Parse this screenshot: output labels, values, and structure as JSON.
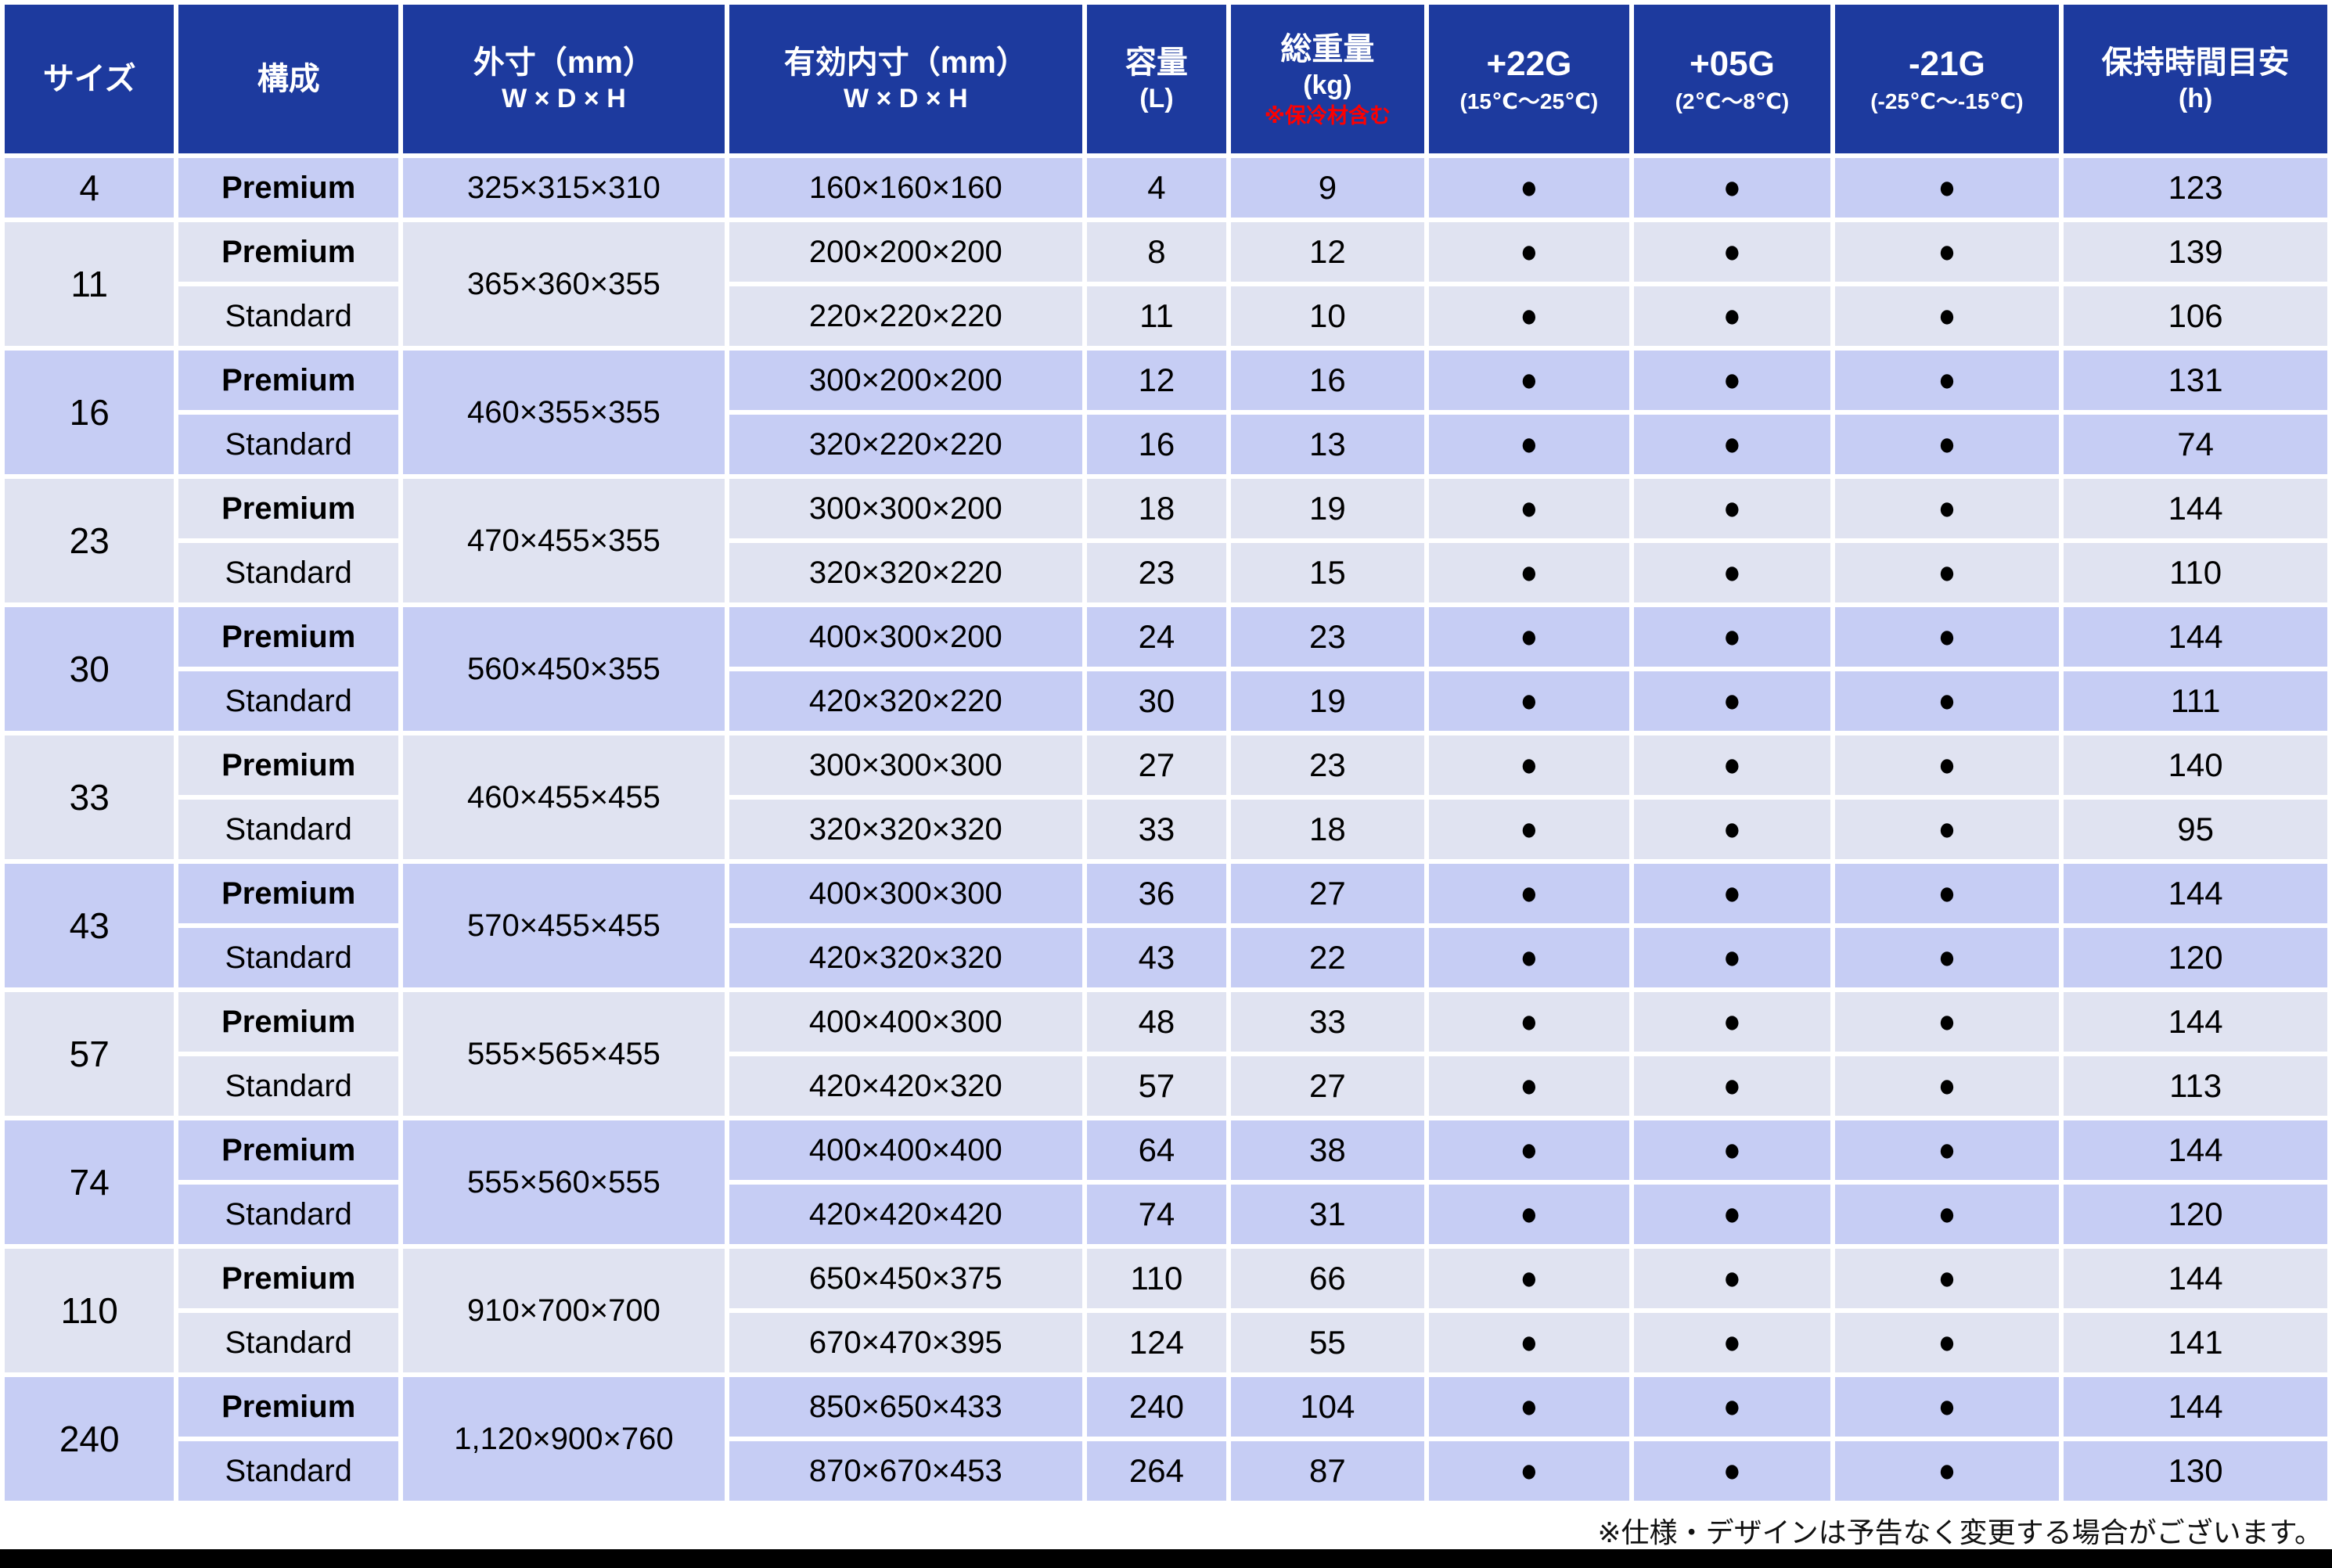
{
  "header": {
    "size": "サイズ",
    "config": "構成",
    "outer": {
      "line1": "外寸（mm）",
      "line2": "W × D × H"
    },
    "inner": {
      "line1": "有効内寸（mm）",
      "line2": "W × D × H"
    },
    "capacity": {
      "line1": "容量",
      "line2": "(L)"
    },
    "weight": {
      "line1": "総重量",
      "line2": "(kg)",
      "note": "※保冷材含む"
    },
    "g22": {
      "line1": "+22G",
      "line2": "(15℃～25℃)"
    },
    "g05": {
      "line1": "+05G",
      "line2": "(2℃～8℃)"
    },
    "g21": {
      "line1": "-21G",
      "line2": "(-25℃～-15℃)"
    },
    "hold": {
      "line1": "保持時間目安",
      "line2": "(h)"
    }
  },
  "dot": "●",
  "footer": "※仕様・デザインは予告なく変更する場合がございます。",
  "colors": {
    "header_blue": "#1d3a9e",
    "stripe_dark": "#c6cdf4",
    "stripe_light": "#e0e3f1",
    "note_red": "#ff0000",
    "bottom_bar": "#000000"
  },
  "groups": [
    {
      "size": "4",
      "outer": "325×315×310",
      "shade": "dark",
      "rows": [
        {
          "config": "Premium",
          "inner": "160×160×160",
          "capacity": "4",
          "weight": "9",
          "g22": true,
          "g05": true,
          "g21": true,
          "hold": "123"
        }
      ]
    },
    {
      "size": "11",
      "outer": "365×360×355",
      "shade": "light",
      "rows": [
        {
          "config": "Premium",
          "inner": "200×200×200",
          "capacity": "8",
          "weight": "12",
          "g22": true,
          "g05": true,
          "g21": true,
          "hold": "139"
        },
        {
          "config": "Standard",
          "inner": "220×220×220",
          "capacity": "11",
          "weight": "10",
          "g22": true,
          "g05": true,
          "g21": true,
          "hold": "106"
        }
      ]
    },
    {
      "size": "16",
      "outer": "460×355×355",
      "shade": "dark",
      "rows": [
        {
          "config": "Premium",
          "inner": "300×200×200",
          "capacity": "12",
          "weight": "16",
          "g22": true,
          "g05": true,
          "g21": true,
          "hold": "131"
        },
        {
          "config": "Standard",
          "inner": "320×220×220",
          "capacity": "16",
          "weight": "13",
          "g22": true,
          "g05": true,
          "g21": true,
          "hold": "74"
        }
      ]
    },
    {
      "size": "23",
      "outer": "470×455×355",
      "shade": "light",
      "rows": [
        {
          "config": "Premium",
          "inner": "300×300×200",
          "capacity": "18",
          "weight": "19",
          "g22": true,
          "g05": true,
          "g21": true,
          "hold": "144"
        },
        {
          "config": "Standard",
          "inner": "320×320×220",
          "capacity": "23",
          "weight": "15",
          "g22": true,
          "g05": true,
          "g21": true,
          "hold": "110"
        }
      ]
    },
    {
      "size": "30",
      "outer": "560×450×355",
      "shade": "dark",
      "rows": [
        {
          "config": "Premium",
          "inner": "400×300×200",
          "capacity": "24",
          "weight": "23",
          "g22": true,
          "g05": true,
          "g21": true,
          "hold": "144"
        },
        {
          "config": "Standard",
          "inner": "420×320×220",
          "capacity": "30",
          "weight": "19",
          "g22": true,
          "g05": true,
          "g21": true,
          "hold": "111"
        }
      ]
    },
    {
      "size": "33",
      "outer": "460×455×455",
      "shade": "light",
      "rows": [
        {
          "config": "Premium",
          "inner": "300×300×300",
          "capacity": "27",
          "weight": "23",
          "g22": true,
          "g05": true,
          "g21": true,
          "hold": "140"
        },
        {
          "config": "Standard",
          "inner": "320×320×320",
          "capacity": "33",
          "weight": "18",
          "g22": true,
          "g05": true,
          "g21": true,
          "hold": "95"
        }
      ]
    },
    {
      "size": "43",
      "outer": "570×455×455",
      "shade": "dark",
      "rows": [
        {
          "config": "Premium",
          "inner": "400×300×300",
          "capacity": "36",
          "weight": "27",
          "g22": true,
          "g05": true,
          "g21": true,
          "hold": "144"
        },
        {
          "config": "Standard",
          "inner": "420×320×320",
          "capacity": "43",
          "weight": "22",
          "g22": true,
          "g05": true,
          "g21": true,
          "hold": "120"
        }
      ]
    },
    {
      "size": "57",
      "outer": "555×565×455",
      "shade": "light",
      "rows": [
        {
          "config": "Premium",
          "inner": "400×400×300",
          "capacity": "48",
          "weight": "33",
          "g22": true,
          "g05": true,
          "g21": true,
          "hold": "144"
        },
        {
          "config": "Standard",
          "inner": "420×420×320",
          "capacity": "57",
          "weight": "27",
          "g22": true,
          "g05": true,
          "g21": true,
          "hold": "113"
        }
      ]
    },
    {
      "size": "74",
      "outer": "555×560×555",
      "shade": "dark",
      "rows": [
        {
          "config": "Premium",
          "inner": "400×400×400",
          "capacity": "64",
          "weight": "38",
          "g22": true,
          "g05": true,
          "g21": true,
          "hold": "144"
        },
        {
          "config": "Standard",
          "inner": "420×420×420",
          "capacity": "74",
          "weight": "31",
          "g22": true,
          "g05": true,
          "g21": true,
          "hold": "120"
        }
      ]
    },
    {
      "size": "110",
      "outer": "910×700×700",
      "shade": "light",
      "rows": [
        {
          "config": "Premium",
          "inner": "650×450×375",
          "capacity": "110",
          "weight": "66",
          "g22": true,
          "g05": true,
          "g21": true,
          "hold": "144"
        },
        {
          "config": "Standard",
          "inner": "670×470×395",
          "capacity": "124",
          "weight": "55",
          "g22": true,
          "g05": true,
          "g21": true,
          "hold": "141"
        }
      ]
    },
    {
      "size": "240",
      "outer": "1,120×900×760",
      "shade": "dark",
      "rows": [
        {
          "config": "Premium",
          "inner": "850×650×433",
          "capacity": "240",
          "weight": "104",
          "g22": true,
          "g05": true,
          "g21": true,
          "hold": "144"
        },
        {
          "config": "Standard",
          "inner": "870×670×453",
          "capacity": "264",
          "weight": "87",
          "g22": true,
          "g05": true,
          "g21": true,
          "hold": "130"
        }
      ]
    }
  ]
}
